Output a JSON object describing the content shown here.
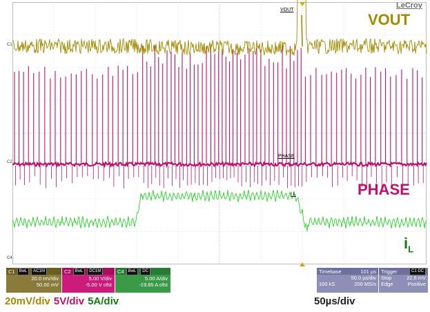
{
  "brand": "LeCroy",
  "traces": {
    "vout_big": "VOUT",
    "phase_big": "PHASE",
    "il_big_main": "i",
    "il_big_sub": "L",
    "vout_small": "VOUT",
    "phase_small": "PHASE",
    "il_small": "I L",
    "colors": {
      "vout": "#a38a00",
      "phase": "#c0106b",
      "il": "#137a13"
    }
  },
  "channel_markers": {
    "c1": "C1",
    "c2": "C2",
    "c4": "C4"
  },
  "descriptors": {
    "c1": {
      "name": "C1",
      "tags": [
        "BwL",
        "AC1M"
      ],
      "line1": "20.0 mV/div",
      "line2": "50.00 mV"
    },
    "c2": {
      "name": "C2",
      "tags": [
        "BwL",
        "DC1M"
      ],
      "line1": "5.00 V/div",
      "line2": "-5.00 V ofst"
    },
    "c4": {
      "name": "C4",
      "tags": [
        "BwL",
        "DC"
      ],
      "line1": "5.00 A/div",
      "line2": "-19.85 A ofst"
    }
  },
  "timebase": {
    "label": "Timebase",
    "delay": "101 µs",
    "per_div": "50.0 µs/div",
    "samples": "100 kS",
    "rate": "200 MS/s"
  },
  "trigger": {
    "label": "Trigger",
    "tag": "C1 DC",
    "mode": "Stop",
    "level": "22.6 mV",
    "type": "Edge",
    "slope": "Positive"
  },
  "bottom": {
    "vout_scale": "20mV/div",
    "phase_scale": "5V/div",
    "il_scale": "5A/div",
    "time_scale": "50µs/div"
  }
}
